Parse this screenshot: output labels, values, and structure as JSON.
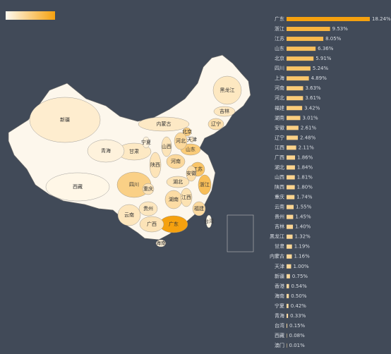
{
  "chart_data": {
    "type": "bar",
    "orientation": "horizontal",
    "categories": [
      "广东",
      "浙江",
      "江苏",
      "山东",
      "北京",
      "四川",
      "上海",
      "河南",
      "河北",
      "福建",
      "湖南",
      "安徽",
      "辽宁",
      "江西",
      "广西",
      "湖北",
      "山西",
      "陕西",
      "重庆",
      "云南",
      "贵州",
      "吉林",
      "黑龙江",
      "甘肃",
      "内蒙古",
      "天津",
      "新疆",
      "香港",
      "海南",
      "宁夏",
      "青海",
      "台湾",
      "西藏",
      "澳门"
    ],
    "values": [
      18.24,
      9.53,
      8.05,
      6.36,
      5.91,
      5.24,
      4.89,
      3.63,
      3.61,
      3.42,
      3.01,
      2.61,
      2.48,
      2.11,
      1.86,
      1.84,
      1.81,
      1.8,
      1.74,
      1.55,
      1.45,
      1.4,
      1.32,
      1.19,
      1.16,
      1.0,
      0.75,
      0.54,
      0.5,
      0.42,
      0.33,
      0.15,
      0.08,
      0.01
    ],
    "value_labels": [
      "18.24%",
      "9.53%",
      "8.05%",
      "6.36%",
      "5.91%",
      "5.24%",
      "4.89%",
      "3.63%",
      "3.61%",
      "3.42%",
      "3.01%",
      "2.61%",
      "2.48%",
      "2.11%",
      "1.86%",
      "1.84%",
      "1.81%",
      "1.80%",
      "1.74%",
      "1.55%",
      "1.45%",
      "1.40%",
      "1.32%",
      "1.19%",
      "1.16%",
      "1.00%",
      "0.75%",
      "0.54%",
      "0.50%",
      "0.42%",
      "0.33%",
      "0.15%",
      "0.08%",
      "0.01%"
    ],
    "xlim": [
      0,
      18.24
    ],
    "colors": [
      "#fffaf0",
      "#f5a10f"
    ]
  }
}
